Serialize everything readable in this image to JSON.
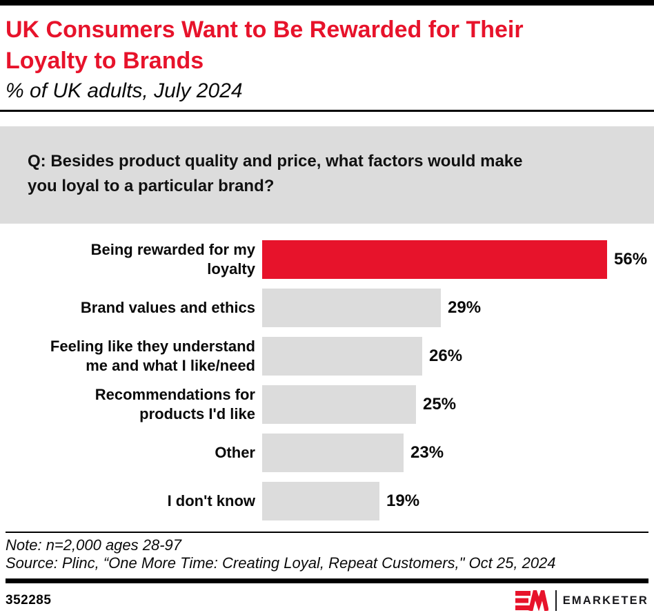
{
  "header": {
    "title": "UK Consumers Want to Be Rewarded for Their Loyalty to Brands",
    "title_lines": [
      "UK Consumers Want to Be Rewarded for Their",
      "Loyalty to Brands"
    ],
    "subtitle": "% of UK adults, July 2024",
    "title_color": "#e7132b"
  },
  "question": {
    "text": "Q: Besides product quality and price, what factors would make you loyal to a particular brand?",
    "lines": [
      "Q: Besides product quality and price, what factors would make",
      "you loyal to a particular brand?"
    ],
    "box_color": "#dcdcdc"
  },
  "chart_data": {
    "type": "bar",
    "orientation": "horizontal",
    "title": "UK Consumers Want to Be Rewarded for Their Loyalty to Brands",
    "subtitle": "% of UK adults, July 2024",
    "categories": [
      "Being rewarded for my loyalty",
      "Brand values and ethics",
      "Feeling like they understand me and what I like/need",
      "Recommendations for products I'd like",
      "Other",
      "I don't know"
    ],
    "category_lines": [
      [
        "Being rewarded for my",
        "loyalty"
      ],
      [
        "Brand values and ethics"
      ],
      [
        "Feeling like they understand",
        "me and what I like/need"
      ],
      [
        "Recommendations for",
        "products I'd like"
      ],
      [
        "Other"
      ],
      [
        "I don't know"
      ]
    ],
    "values": [
      56,
      29,
      26,
      25,
      23,
      19
    ],
    "value_suffix": "%",
    "xlim": [
      0,
      60
    ],
    "xlabel": "",
    "ylabel": "",
    "grid": false,
    "legend": "none",
    "value_labels_position": "outside-end",
    "highlight_index": 0,
    "colors": {
      "highlight": "#e7132b",
      "default": "#dcdcdc"
    }
  },
  "footer": {
    "note": "Note: n=2,000 ages 28-97",
    "source": "Source: Plinc, “One More Time: Creating Loyal, Repeat Customers,\" Oct 25, 2024",
    "chart_id": "352285",
    "brand": "EMARKETER",
    "brand_red": "#e7132b"
  }
}
